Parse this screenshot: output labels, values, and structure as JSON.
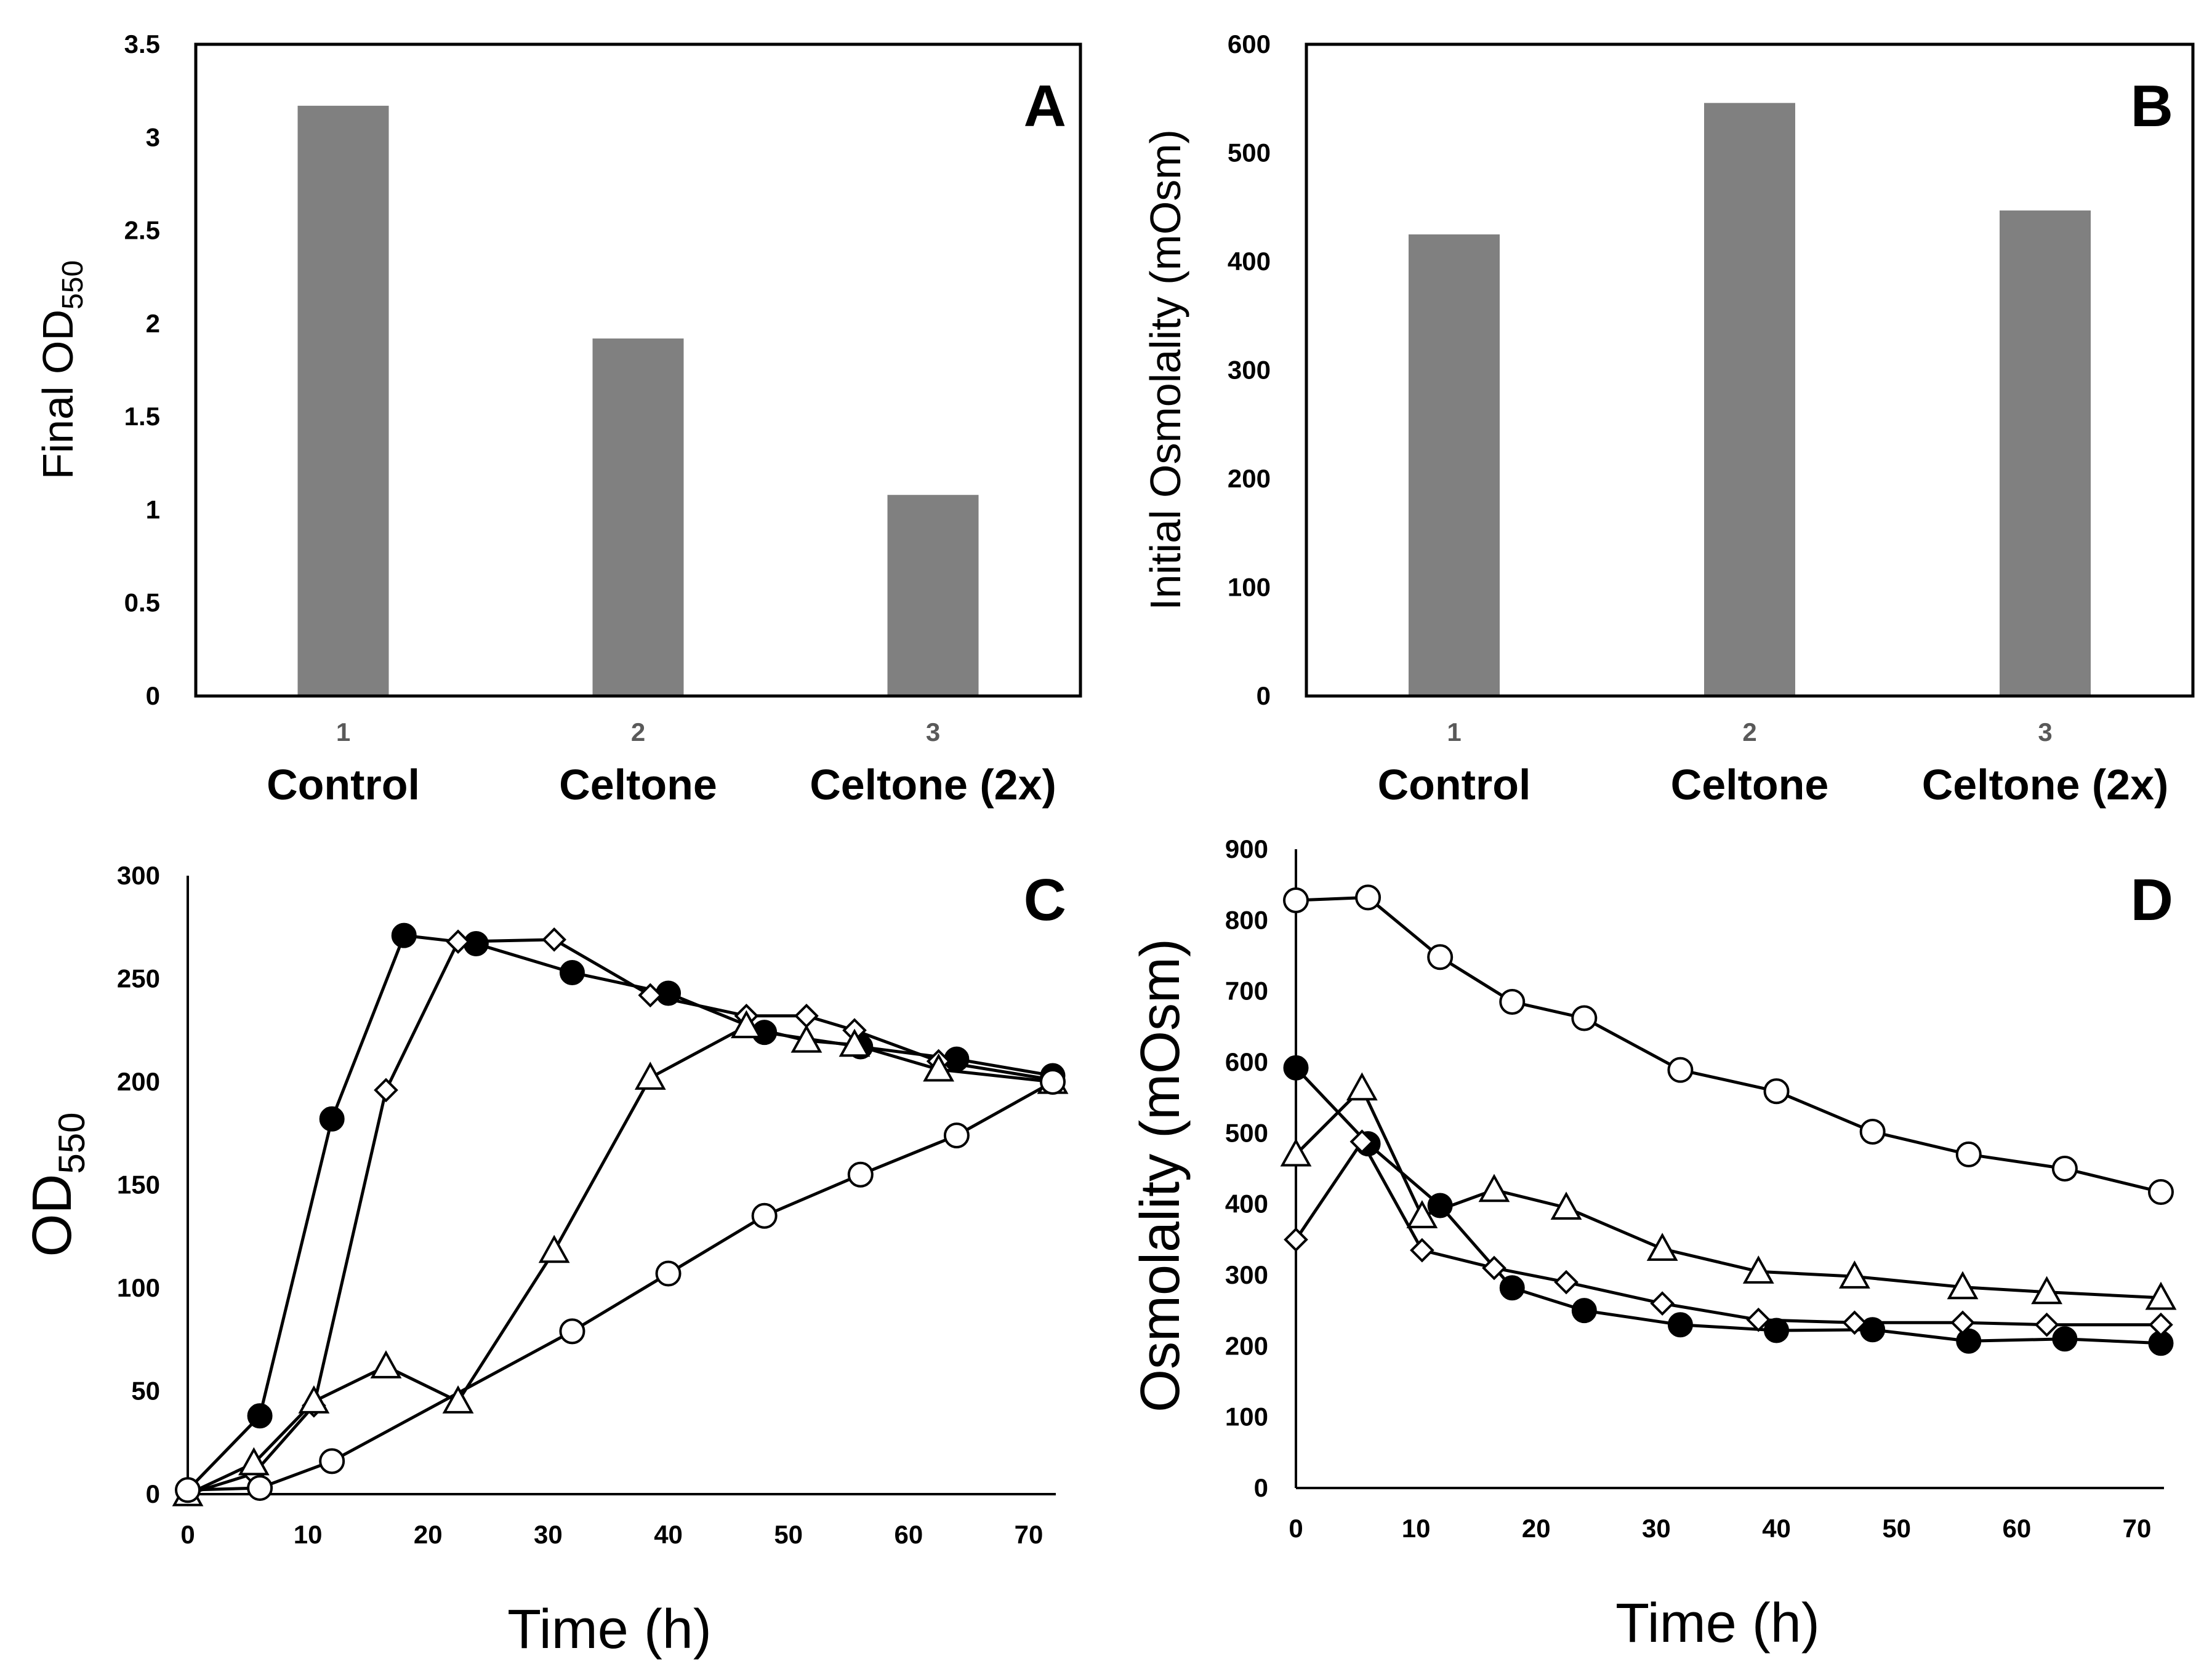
{
  "chart_data": [
    {
      "panel": "A",
      "type": "bar",
      "panel_label": "A",
      "categories": [
        "1",
        "2",
        "3"
      ],
      "category_names": [
        "Control",
        "Celtone",
        "Celtone (2x)"
      ],
      "values": [
        3.17,
        1.92,
        1.08
      ],
      "ylabel": "Final OD",
      "ylabel_sub": "550",
      "ylim": [
        0,
        3.5
      ],
      "yticks": [
        "0",
        "0.5",
        "1",
        "1.5",
        "2",
        "2.5",
        "3",
        "3.5"
      ],
      "bar_color": "#808080"
    },
    {
      "panel": "B",
      "type": "bar",
      "panel_label": "B",
      "categories": [
        "1",
        "2",
        "3"
      ],
      "category_names": [
        "Control",
        "Celtone",
        "Celtone (2x)"
      ],
      "values": [
        425,
        546,
        447
      ],
      "ylabel": "Initial Osmolality (mOsm)",
      "ylim": [
        0,
        600
      ],
      "yticks": [
        "0",
        "100",
        "200",
        "300",
        "400",
        "500",
        "600"
      ],
      "bar_color": "#808080"
    },
    {
      "panel": "C",
      "type": "line",
      "panel_label": "C",
      "xlabel": "Time (h)",
      "ylabel": "OD",
      "ylabel_sub": "550",
      "xlim": [
        0,
        72
      ],
      "ylim": [
        0,
        300
      ],
      "xticks": [
        "0",
        "10",
        "20",
        "30",
        "40",
        "50",
        "60",
        "70"
      ],
      "yticks": [
        "0",
        "50",
        "100",
        "150",
        "200",
        "250",
        "300"
      ],
      "series": [
        {
          "name": "filled circle",
          "marker": "filled-circle",
          "x": [
            0,
            6,
            12,
            18,
            24,
            32,
            40,
            48,
            56,
            64,
            72
          ],
          "y": [
            2,
            38,
            182,
            271,
            267,
            253,
            243,
            224,
            217,
            211,
            203
          ]
        },
        {
          "name": "diamond",
          "marker": "diamond",
          "x": [
            0,
            5.5,
            10.5,
            16.5,
            22.5,
            30.5,
            38.5,
            46.5,
            51.5,
            55.5,
            62.5,
            72
          ],
          "y": [
            0,
            10,
            43,
            196,
            268,
            269,
            242,
            232,
            232,
            225,
            210,
            201
          ]
        },
        {
          "name": "triangle",
          "marker": "triangle",
          "x": [
            0,
            5.5,
            10.5,
            16.5,
            22.5,
            30.5,
            38.5,
            46.5,
            51.5,
            55.5,
            62.5,
            72
          ],
          "y": [
            0,
            15,
            45,
            62,
            45,
            118,
            202,
            227,
            220,
            218,
            206,
            200
          ]
        },
        {
          "name": "open circle",
          "marker": "open-circle",
          "x": [
            0,
            6,
            12,
            32,
            40,
            48,
            56,
            64,
            72
          ],
          "y": [
            2,
            3,
            16,
            79,
            107,
            135,
            155,
            174,
            200
          ]
        }
      ]
    },
    {
      "panel": "D",
      "type": "line",
      "panel_label": "D",
      "xlabel": "Time (h)",
      "ylabel": "Osmolality (mOsm)",
      "xlim": [
        0,
        72
      ],
      "ylim": [
        0,
        900
      ],
      "xticks": [
        "0",
        "10",
        "20",
        "30",
        "40",
        "50",
        "60",
        "70"
      ],
      "yticks": [
        "0",
        "100",
        "200",
        "300",
        "400",
        "500",
        "600",
        "700",
        "800",
        "900"
      ],
      "series": [
        {
          "name": "open circle",
          "marker": "open-circle",
          "x": [
            0,
            6,
            12,
            18,
            24,
            32,
            40,
            48,
            56,
            64,
            72
          ],
          "y": [
            828,
            832,
            748,
            685,
            662,
            589,
            559,
            502,
            470,
            450,
            417
          ]
        },
        {
          "name": "filled circle",
          "marker": "filled-circle",
          "x": [
            0,
            6,
            12,
            18,
            24,
            32,
            40,
            48,
            56,
            64,
            72
          ],
          "y": [
            592,
            485,
            398,
            282,
            250,
            230,
            222,
            223,
            207,
            210,
            204
          ]
        },
        {
          "name": "triangle",
          "marker": "triangle",
          "x": [
            0,
            5.5,
            10.5,
            16.5,
            22.5,
            30.5,
            38.5,
            46.5,
            55.5,
            62.5,
            72
          ],
          "y": [
            470,
            563,
            383,
            420,
            395,
            337,
            305,
            298,
            283,
            276,
            268
          ]
        },
        {
          "name": "diamond",
          "marker": "diamond",
          "x": [
            0,
            5.5,
            10.5,
            16.5,
            22.5,
            30.5,
            38.5,
            46.5,
            55.5,
            62.5,
            72
          ],
          "y": [
            350,
            488,
            335,
            310,
            290,
            260,
            237,
            233,
            233,
            230,
            230
          ]
        }
      ]
    }
  ]
}
